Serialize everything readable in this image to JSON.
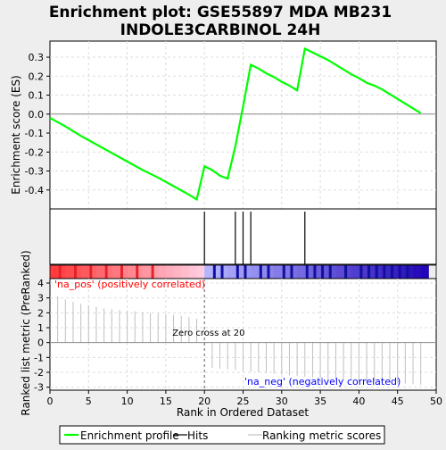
{
  "chart_data": {
    "type": "line",
    "title_line1": "Enrichment plot: GSE55897 MDA MB231",
    "title_line2": "INDOLE3CARBINOL 24H",
    "es_panel": {
      "ylabel": "Enrichment score (ES)",
      "ylim": [
        -0.5,
        0.385
      ],
      "yticks": [
        -0.4,
        -0.3,
        -0.2,
        -0.1,
        0.0,
        0.1,
        0.2,
        0.3
      ],
      "ytick_labels": [
        "-0.4",
        "-0.3",
        "-0.2",
        "-0.1",
        "0.0",
        "0.1",
        "0.2",
        "0.3"
      ],
      "grid": true,
      "series": [
        {
          "name": "Enrichment profile",
          "color": "#00ff00",
          "x": [
            0,
            2,
            4,
            6,
            8,
            10,
            12,
            14,
            16,
            18,
            19,
            20,
            21,
            22,
            23,
            24,
            25,
            26,
            27,
            28,
            29,
            30,
            31,
            32,
            33,
            34,
            35,
            36,
            37,
            38,
            39,
            40,
            41,
            42,
            43,
            44,
            45,
            46,
            47,
            48
          ],
          "y": [
            -0.02,
            -0.065,
            -0.115,
            -0.16,
            -0.205,
            -0.25,
            -0.295,
            -0.335,
            -0.38,
            -0.425,
            -0.45,
            -0.275,
            -0.295,
            -0.325,
            -0.34,
            -0.17,
            0.04,
            0.26,
            0.24,
            0.215,
            0.195,
            0.17,
            0.15,
            0.125,
            0.345,
            0.325,
            0.305,
            0.285,
            0.26,
            0.235,
            0.21,
            0.19,
            0.165,
            0.15,
            0.13,
            0.105,
            0.08,
            0.055,
            0.03,
            0.005
          ]
        }
      ]
    },
    "hits": {
      "color": "#000000",
      "x": [
        20,
        24,
        25,
        26,
        33
      ]
    },
    "rank_panel": {
      "ylabel": "Ranked list metric (PreRanked)",
      "xlabel": "Rank in Ordered Dataset",
      "xlim": [
        0,
        50
      ],
      "xticks": [
        0,
        5,
        10,
        15,
        20,
        25,
        30,
        35,
        40,
        45,
        50
      ],
      "xtick_labels": [
        "0",
        "5",
        "10",
        "15",
        "20",
        "25",
        "30",
        "35",
        "40",
        "45",
        "50"
      ],
      "ylim": [
        -3.2,
        4.3
      ],
      "yticks": [
        -3,
        -2,
        -1,
        0,
        1,
        2,
        3,
        4
      ],
      "ytick_labels": [
        "-3",
        "-2",
        "-1",
        "0",
        "1",
        "2",
        "3",
        "4"
      ],
      "x": [
        1,
        2,
        3,
        4,
        5,
        6,
        7,
        8,
        9,
        10,
        11,
        12,
        13,
        14,
        15,
        16,
        17,
        18,
        19,
        21,
        22,
        23,
        24,
        25,
        26,
        27,
        28,
        29,
        30,
        31,
        32,
        33,
        34,
        35,
        36,
        37,
        38,
        39,
        40,
        41,
        42,
        43,
        44,
        45,
        46,
        47,
        48
      ],
      "values": [
        3.1,
        2.9,
        2.75,
        2.6,
        2.5,
        2.4,
        2.3,
        2.25,
        2.2,
        2.15,
        2.1,
        2.05,
        2.0,
        1.95,
        1.9,
        1.85,
        1.8,
        1.7,
        1.6,
        -1.7,
        -1.75,
        -1.8,
        -1.85,
        -1.9,
        -1.95,
        -2.0,
        -2.05,
        -2.1,
        -2.15,
        -2.2,
        -2.25,
        -2.3,
        -2.35,
        -2.4,
        -2.45,
        -2.5,
        -2.5,
        -2.55,
        -2.6,
        -2.6,
        -2.65,
        -2.7,
        -2.7,
        -2.75,
        -2.75,
        -2.8,
        -2.85
      ],
      "zero_cross_label": "Zero cross at 20",
      "zero_cross_x": 20,
      "pos_label": "'na_pos' (positively correlated)",
      "neg_label": "'na_neg' (negatively correlated)",
      "pos_color": "#ff0000",
      "neg_color": "#0000ff"
    },
    "legend": {
      "placement": "bottom",
      "entries": [
        {
          "label": "Enrichment profile",
          "color": "#00ff00",
          "style": "line"
        },
        {
          "label": "Hits",
          "color": "#000000",
          "style": "line"
        },
        {
          "label": "Ranking metric scores",
          "color": "#c0c0c0",
          "style": "line"
        }
      ]
    }
  }
}
